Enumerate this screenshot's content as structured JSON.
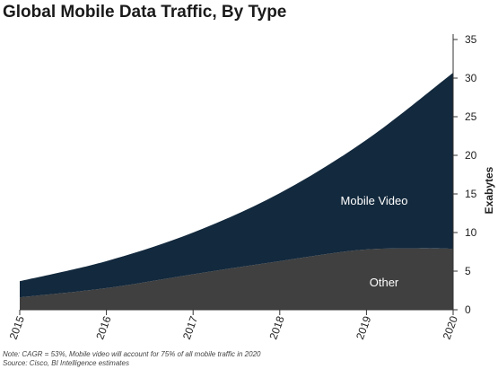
{
  "chart_data": {
    "type": "area",
    "stacked": true,
    "title": "Global Mobile Data Traffic, By Type",
    "x": [
      "2015",
      "2016",
      "2017",
      "2018",
      "2019",
      "2020"
    ],
    "series": [
      {
        "name": "Other",
        "values": [
          1.6,
          2.8,
          4.6,
          6.3,
          7.8,
          7.9
        ]
      },
      {
        "name": "Mobile Video",
        "values": [
          2.1,
          3.5,
          5.4,
          8.8,
          14.2,
          22.8
        ]
      }
    ],
    "ylabel": "Exabytes",
    "ylim": [
      0,
      35
    ],
    "yticks": [
      0,
      5,
      10,
      15,
      20,
      25,
      30,
      35
    ],
    "y_axis_side": "right",
    "grid": false,
    "legend": "none (labels inside areas)",
    "colors": {
      "Other": "#404040",
      "Mobile Video": "#13293d"
    }
  },
  "notes": {
    "note": "Note: CAGR = 53%, Mobile video will account for 75% of all mobile traffic in 2020",
    "source": "Source: Cisco, BI Intelligence estimates"
  }
}
